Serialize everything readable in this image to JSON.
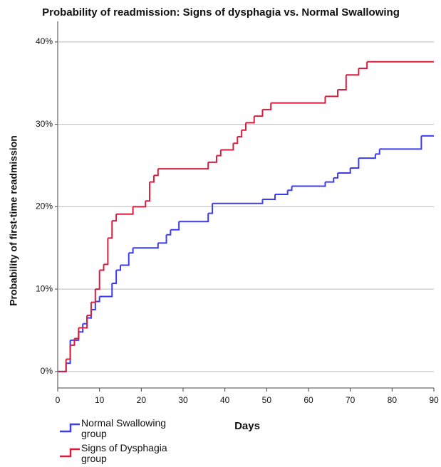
{
  "chart_data": {
    "type": "step",
    "title": "Probability of readmission: Signs of dysphagia vs. Normal Swallowing",
    "x_label": "Days",
    "y_label": "Probability of first-time readmission",
    "xlim": [
      0,
      90
    ],
    "xticks": [
      0,
      10,
      20,
      30,
      40,
      50,
      60,
      70,
      80,
      90
    ],
    "ylim": [
      -2,
      42.5
    ],
    "yticks": [
      {
        "value": 0,
        "label": "0%"
      },
      {
        "value": 10,
        "label": "10%"
      },
      {
        "value": 20,
        "label": "20%"
      },
      {
        "value": 30,
        "label": "30%"
      },
      {
        "value": 40,
        "label": "40%"
      }
    ],
    "grid": true,
    "legend": "bottom-left",
    "series": [
      {
        "name": "Normal Swallowing group",
        "color": "#3c3cf0",
        "x": [
          0,
          2,
          3,
          5,
          6,
          7,
          8,
          9,
          10,
          13,
          14,
          15,
          17,
          18,
          24,
          26,
          27,
          29,
          36,
          37,
          49,
          52,
          55,
          56,
          64,
          66,
          67,
          70,
          72,
          76,
          77,
          87,
          90
        ],
        "values": [
          0,
          1,
          3.8,
          4.8,
          5.8,
          6.5,
          7.5,
          8.5,
          9.1,
          10.7,
          12.3,
          12.9,
          14.4,
          15,
          15.6,
          16.6,
          17.2,
          18.2,
          19.2,
          20.4,
          20.9,
          21.5,
          22,
          22.5,
          23,
          23.5,
          24.1,
          24.7,
          25.9,
          26.4,
          27,
          28.6,
          28.6
        ]
      },
      {
        "name": "Signs of Dysphagia group",
        "color": "#d81e3c",
        "x": [
          0,
          2,
          3,
          4,
          5,
          7,
          8,
          9,
          10,
          11,
          12,
          13,
          14,
          18,
          21,
          22,
          23,
          24,
          36,
          38,
          39,
          42,
          43,
          44,
          45,
          47,
          49,
          51,
          64,
          67,
          69,
          72,
          74,
          90
        ],
        "values": [
          0,
          1.5,
          3.2,
          4,
          5.3,
          6.8,
          8.4,
          10,
          12.3,
          13,
          16.2,
          18.3,
          19.1,
          20,
          20.7,
          23,
          23.8,
          24.6,
          25.4,
          26.2,
          26.9,
          27.7,
          28.5,
          29.3,
          30.2,
          31,
          31.8,
          32.6,
          33.4,
          34.2,
          36,
          36.8,
          37.6,
          37.6
        ]
      }
    ]
  }
}
